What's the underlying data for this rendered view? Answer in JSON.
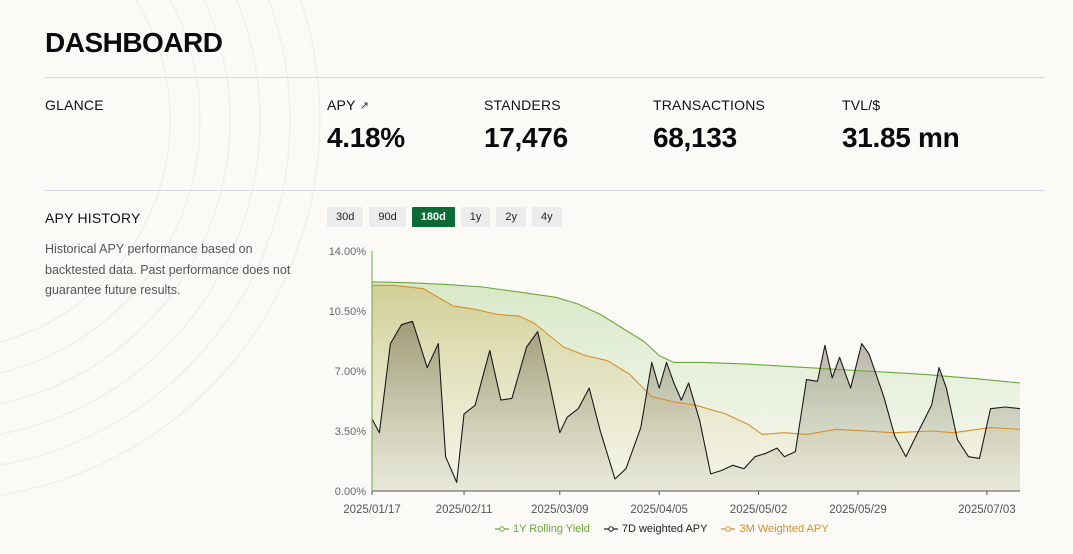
{
  "header": {
    "title": "DASHBOARD"
  },
  "glance": {
    "label": "GLANCE",
    "stats": [
      {
        "label": "APY",
        "value": "4.18%",
        "icon": "external-link-icon"
      },
      {
        "label": "STANDERS",
        "value": "17,476"
      },
      {
        "label": "TRANSACTIONS",
        "value": "68,133"
      },
      {
        "label": "TVL/$",
        "value": "31.85 mn"
      }
    ]
  },
  "apy_history": {
    "label": "APY HISTORY",
    "description": "Historical APY performance based on backtested data. Past performance does not guarantee future results.",
    "ranges": [
      "30d",
      "90d",
      "180d",
      "1y",
      "2y",
      "4y"
    ],
    "active_range": "180d"
  },
  "colors": {
    "accent": "#0b6b37",
    "rolling": "#6aa83a",
    "weighted7d": "#1a1a1a",
    "weighted3m": "#d4902a"
  },
  "chart_data": {
    "type": "area",
    "title": "",
    "xlabel": "",
    "ylabel": "",
    "ylim": [
      0,
      14
    ],
    "y_ticks": [
      "14.00%",
      "10.50%",
      "7.00%",
      "3.50%",
      "0.00%"
    ],
    "x_ticks": [
      "2025/01/17",
      "2025/02/11",
      "2025/03/09",
      "2025/04/05",
      "2025/05/02",
      "2025/05/29",
      "2025/07/03"
    ],
    "x_range": [
      "2025/01/17",
      "2025/07/12"
    ],
    "grid": false,
    "legend_position": "bottom",
    "series": [
      {
        "name": "1Y Rolling Yield",
        "color": "#6aa83a",
        "points": [
          [
            "2025/01/17",
            12.2
          ],
          [
            "2025/01/27",
            12.15
          ],
          [
            "2025/02/06",
            12.05
          ],
          [
            "2025/02/16",
            11.9
          ],
          [
            "2025/02/26",
            11.6
          ],
          [
            "2025/03/08",
            11.3
          ],
          [
            "2025/03/14",
            10.9
          ],
          [
            "2025/03/20",
            10.3
          ],
          [
            "2025/03/26",
            9.5
          ],
          [
            "2025/04/01",
            8.7
          ],
          [
            "2025/04/05",
            7.9
          ],
          [
            "2025/04/09",
            7.5
          ],
          [
            "2025/04/17",
            7.5
          ],
          [
            "2025/04/29",
            7.4
          ],
          [
            "2025/05/15",
            7.2
          ],
          [
            "2025/05/31",
            7.0
          ],
          [
            "2025/06/16",
            6.8
          ],
          [
            "2025/06/30",
            6.55
          ],
          [
            "2025/07/12",
            6.3
          ]
        ]
      },
      {
        "name": "7D weighted APY",
        "color": "#1a1a1a",
        "points": [
          [
            "2025/01/17",
            4.2
          ],
          [
            "2025/01/19",
            3.4
          ],
          [
            "2025/01/22",
            8.6
          ],
          [
            "2025/01/25",
            9.7
          ],
          [
            "2025/01/28",
            9.9
          ],
          [
            "2025/02/01",
            7.2
          ],
          [
            "2025/02/04",
            8.6
          ],
          [
            "2025/02/06",
            2.0
          ],
          [
            "2025/02/09",
            0.5
          ],
          [
            "2025/02/11",
            4.5
          ],
          [
            "2025/02/14",
            5.0
          ],
          [
            "2025/02/18",
            8.2
          ],
          [
            "2025/02/21",
            5.3
          ],
          [
            "2025/02/24",
            5.4
          ],
          [
            "2025/02/28",
            8.4
          ],
          [
            "2025/03/03",
            9.3
          ],
          [
            "2025/03/06",
            6.5
          ],
          [
            "2025/03/09",
            3.4
          ],
          [
            "2025/03/11",
            4.3
          ],
          [
            "2025/03/14",
            4.8
          ],
          [
            "2025/03/17",
            6.0
          ],
          [
            "2025/03/20",
            3.5
          ],
          [
            "2025/03/24",
            0.7
          ],
          [
            "2025/03/27",
            1.3
          ],
          [
            "2025/03/31",
            3.7
          ],
          [
            "2025/04/03",
            7.5
          ],
          [
            "2025/04/05",
            6.0
          ],
          [
            "2025/04/07",
            7.5
          ],
          [
            "2025/04/09",
            6.3
          ],
          [
            "2025/04/11",
            5.3
          ],
          [
            "2025/04/13",
            6.3
          ],
          [
            "2025/04/16",
            4.1
          ],
          [
            "2025/04/19",
            1.0
          ],
          [
            "2025/04/22",
            1.2
          ],
          [
            "2025/04/25",
            1.5
          ],
          [
            "2025/04/28",
            1.3
          ],
          [
            "2025/05/01",
            2.0
          ],
          [
            "2025/05/04",
            2.2
          ],
          [
            "2025/05/07",
            2.5
          ],
          [
            "2025/05/09",
            2.0
          ],
          [
            "2025/05/12",
            2.3
          ],
          [
            "2025/05/15",
            6.5
          ],
          [
            "2025/05/18",
            6.4
          ],
          [
            "2025/05/20",
            8.5
          ],
          [
            "2025/05/22",
            6.6
          ],
          [
            "2025/05/24",
            7.8
          ],
          [
            "2025/05/27",
            6.0
          ],
          [
            "2025/05/30",
            8.6
          ],
          [
            "2025/06/01",
            8.0
          ],
          [
            "2025/06/05",
            5.5
          ],
          [
            "2025/06/08",
            3.2
          ],
          [
            "2025/06/11",
            2.0
          ],
          [
            "2025/06/14",
            3.3
          ],
          [
            "2025/06/18",
            5.0
          ],
          [
            "2025/06/20",
            7.2
          ],
          [
            "2025/06/22",
            6.0
          ],
          [
            "2025/06/25",
            3.0
          ],
          [
            "2025/06/28",
            2.0
          ],
          [
            "2025/07/01",
            1.9
          ],
          [
            "2025/07/04",
            4.8
          ],
          [
            "2025/07/08",
            4.9
          ],
          [
            "2025/07/12",
            4.8
          ]
        ]
      },
      {
        "name": "3M Weighted APY",
        "color": "#d4902a",
        "points": [
          [
            "2025/01/17",
            12.0
          ],
          [
            "2025/01/23",
            12.0
          ],
          [
            "2025/01/31",
            11.8
          ],
          [
            "2025/02/08",
            10.8
          ],
          [
            "2025/02/14",
            10.6
          ],
          [
            "2025/02/20",
            10.3
          ],
          [
            "2025/02/26",
            10.2
          ],
          [
            "2025/03/02",
            9.8
          ],
          [
            "2025/03/06",
            9.1
          ],
          [
            "2025/03/10",
            8.4
          ],
          [
            "2025/03/16",
            7.9
          ],
          [
            "2025/03/22",
            7.6
          ],
          [
            "2025/03/28",
            6.8
          ],
          [
            "2025/04/03",
            5.5
          ],
          [
            "2025/04/09",
            5.2
          ],
          [
            "2025/04/15",
            5.0
          ],
          [
            "2025/04/23",
            4.5
          ],
          [
            "2025/04/29",
            3.9
          ],
          [
            "2025/05/03",
            3.3
          ],
          [
            "2025/05/09",
            3.4
          ],
          [
            "2025/05/15",
            3.3
          ],
          [
            "2025/05/23",
            3.6
          ],
          [
            "2025/05/31",
            3.5
          ],
          [
            "2025/06/08",
            3.4
          ],
          [
            "2025/06/18",
            3.5
          ],
          [
            "2025/06/24",
            3.4
          ],
          [
            "2025/07/04",
            3.7
          ],
          [
            "2025/07/12",
            3.6
          ]
        ]
      }
    ]
  }
}
